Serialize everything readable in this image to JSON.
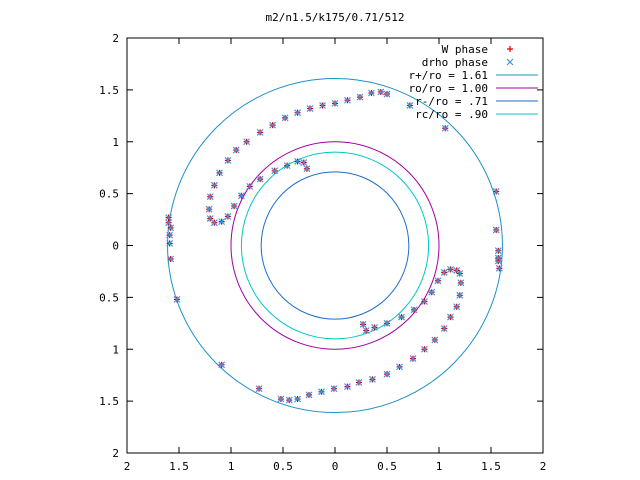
{
  "chart_data": {
    "type": "scatter",
    "title": "m2/n1.5/k175/0.71/512",
    "xlabel": "",
    "ylabel": "",
    "xlim": [
      -2,
      2
    ],
    "ylim": [
      -2,
      2
    ],
    "grid": false,
    "legend_position": "top-right",
    "x_tick_values": [
      -2,
      -1.5,
      -1,
      -0.5,
      0,
      0.5,
      1,
      1.5,
      2
    ],
    "x_tick_labels": [
      "2",
      "1.5",
      "1",
      "0.5",
      "0",
      "0.5",
      "1",
      "1.5",
      "2"
    ],
    "y_tick_values": [
      2,
      1.5,
      1,
      0.5,
      0,
      -0.5,
      -1,
      -1.5,
      -2
    ],
    "y_tick_labels": [
      "2",
      "1.5",
      "1",
      "0.5",
      "0",
      "0.5",
      "1",
      "1.5",
      "2"
    ],
    "circles": [
      {
        "name": "r+/ro = 1.61",
        "radius": 1.61,
        "color": "#1e90c8"
      },
      {
        "name": "ro/ro = 1.00",
        "radius": 1.0,
        "color": "#a000a0"
      },
      {
        "name": "r-/ro = .71",
        "radius": 0.71,
        "color": "#1e6ec8"
      },
      {
        "name": "rc/ro = .90",
        "radius": 0.9,
        "color": "#00c8c8"
      }
    ],
    "marker_series": [
      {
        "name": "W phase",
        "marker": "+",
        "color": "#e00000"
      },
      {
        "name": "drho phase",
        "marker": "x",
        "color": "#3c96e6"
      }
    ],
    "points": [
      [
        -1.6,
        0.27
      ],
      [
        -1.6,
        0.22
      ],
      [
        -1.58,
        0.17
      ],
      [
        -1.59,
        0.1
      ],
      [
        -1.59,
        0.02
      ],
      [
        -1.58,
        -0.13
      ],
      [
        -1.52,
        -0.52
      ],
      [
        -1.09,
        -1.15
      ],
      [
        -0.73,
        -1.38
      ],
      [
        -0.52,
        -1.48
      ],
      [
        -0.44,
        -1.49
      ],
      [
        -0.36,
        -1.48
      ],
      [
        -0.25,
        -1.44
      ],
      [
        -0.13,
        -1.41
      ],
      [
        -0.01,
        -1.38
      ],
      [
        0.12,
        -1.36
      ],
      [
        0.23,
        -1.32
      ],
      [
        0.36,
        -1.29
      ],
      [
        0.5,
        -1.24
      ],
      [
        0.62,
        -1.17
      ],
      [
        0.75,
        -1.09
      ],
      [
        0.86,
        -1.0
      ],
      [
        0.96,
        -0.91
      ],
      [
        1.05,
        -0.8
      ],
      [
        1.11,
        -0.69
      ],
      [
        1.17,
        -0.59
      ],
      [
        1.2,
        -0.48
      ],
      [
        1.21,
        -0.36
      ],
      [
        1.2,
        -0.27
      ],
      [
        1.17,
        -0.24
      ],
      [
        1.11,
        -0.23
      ],
      [
        1.05,
        -0.26
      ],
      [
        0.99,
        -0.34
      ],
      [
        0.93,
        -0.45
      ],
      [
        0.86,
        -0.54
      ],
      [
        0.76,
        -0.62
      ],
      [
        0.64,
        -0.69
      ],
      [
        0.5,
        -0.75
      ],
      [
        0.38,
        -0.79
      ],
      [
        0.3,
        -0.82
      ],
      [
        0.27,
        -0.76
      ],
      [
        1.55,
        0.15
      ],
      [
        1.57,
        -0.05
      ],
      [
        1.57,
        -0.15
      ],
      [
        1.58,
        -0.22
      ],
      [
        1.57,
        -0.12
      ],
      [
        1.55,
        0.52
      ],
      [
        1.06,
        1.13
      ],
      [
        0.72,
        1.35
      ],
      [
        0.5,
        1.46
      ],
      [
        0.44,
        1.48
      ],
      [
        0.35,
        1.47
      ],
      [
        0.24,
        1.43
      ],
      [
        0.12,
        1.4
      ],
      [
        0.0,
        1.37
      ],
      [
        -0.12,
        1.35
      ],
      [
        -0.24,
        1.32
      ],
      [
        -0.36,
        1.28
      ],
      [
        -0.48,
        1.23
      ],
      [
        -0.6,
        1.16
      ],
      [
        -0.72,
        1.09
      ],
      [
        -0.85,
        1.0
      ],
      [
        -0.95,
        0.92
      ],
      [
        -1.03,
        0.82
      ],
      [
        -1.11,
        0.7
      ],
      [
        -1.16,
        0.58
      ],
      [
        -1.2,
        0.47
      ],
      [
        -1.21,
        0.35
      ],
      [
        -1.2,
        0.26
      ],
      [
        -1.16,
        0.22
      ],
      [
        -1.09,
        0.23
      ],
      [
        -1.03,
        0.28
      ],
      [
        -0.97,
        0.38
      ],
      [
        -0.9,
        0.48
      ],
      [
        -0.82,
        0.57
      ],
      [
        -0.72,
        0.64
      ],
      [
        -0.58,
        0.72
      ],
      [
        -0.46,
        0.77
      ],
      [
        -0.36,
        0.81
      ],
      [
        -0.3,
        0.8
      ],
      [
        -0.27,
        0.74
      ]
    ]
  }
}
